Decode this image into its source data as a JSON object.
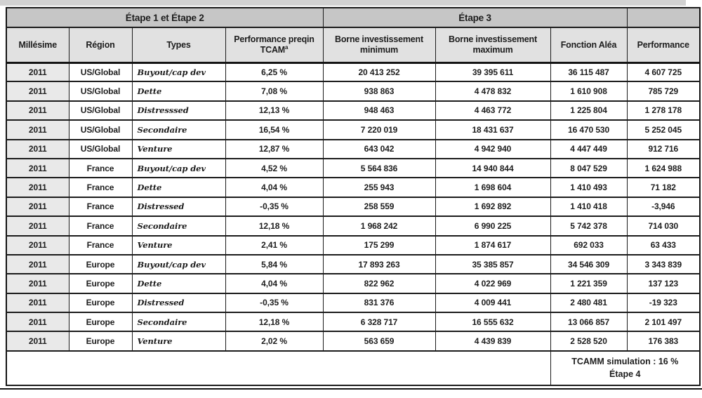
{
  "table": {
    "group_headers": [
      {
        "label": "Étape 1 et Étape 2",
        "colspan": 4
      },
      {
        "label": "Étape 3",
        "colspan": 3
      },
      {
        "label": "",
        "colspan": 1
      }
    ],
    "columns": [
      "Millésime",
      "Région",
      "Types",
      "Performance preqin TCAM",
      "Borne investissement minimum",
      "Borne investissement maximum",
      "Fonction Aléa",
      "Performance"
    ],
    "header_footnote_marker": "a",
    "rows": [
      [
        "2011",
        "US/Global",
        "Buyout/cap dev",
        "6,25 %",
        "20 413 252",
        "39 395 611",
        "36 115 487",
        "4 607 725"
      ],
      [
        "2011",
        "US/Global",
        "Dette",
        "7,08 %",
        "938 863",
        "4 478 832",
        "1 610 908",
        "785 729"
      ],
      [
        "2011",
        "US/Global",
        "Distresssed",
        "12,13 %",
        "948 463",
        "4 463 772",
        "1 225 804",
        "1 278 178"
      ],
      [
        "2011",
        "US/Global",
        "Secondaire",
        "16,54 %",
        "7 220 019",
        "18 431 637",
        "16 470 530",
        "5 252 045"
      ],
      [
        "2011",
        "US/Global",
        "Venture",
        "12,87 %",
        "643 042",
        "4 942 940",
        "4 447 449",
        "912 716"
      ],
      [
        "2011",
        "France",
        "Buyout/cap dev",
        "4,52 %",
        "5 564 836",
        "14 940 844",
        "8 047 529",
        "1 624 988"
      ],
      [
        "2011",
        "France",
        "Dette",
        "4,04 %",
        "255 943",
        "1 698 604",
        "1 410 493",
        "71 182"
      ],
      [
        "2011",
        "France",
        "Distressed",
        "-0,35 %",
        "258 559",
        "1 692 892",
        "1 410 418",
        "-3,946"
      ],
      [
        "2011",
        "France",
        "Secondaire",
        "12,18 %",
        "1 968 242",
        "6 990 225",
        "5 742 378",
        "714 030"
      ],
      [
        "2011",
        "France",
        "Venture",
        "2,41 %",
        "175 299",
        "1 874 617",
        "692 033",
        "63 433"
      ],
      [
        "2011",
        "Europe",
        "Buyout/cap dev",
        "5,84 %",
        "17 893 263",
        "35 385 857",
        "34 546 309",
        "3 343 839"
      ],
      [
        "2011",
        "Europe",
        "Dette",
        "4,04 %",
        "822 962",
        "4 022 969",
        "1 221 359",
        "137 123"
      ],
      [
        "2011",
        "Europe",
        "Distressed",
        "-0,35 %",
        "831 376",
        "4 009 441",
        "2 480 481",
        "-19 323"
      ],
      [
        "2011",
        "Europe",
        "Secondaire",
        "12,18 %",
        "6 328 717",
        "16 555 632",
        "13 066 857",
        "2 101 497"
      ],
      [
        "2011",
        "Europe",
        "Venture",
        "2,02 %",
        "563 659",
        "4 439 839",
        "2 528 520",
        "176 383"
      ]
    ],
    "footer": {
      "line1": "TCAMM simulation : 16 %",
      "line2": "Étape 4"
    }
  },
  "colors": {
    "group_header_bg": "#c6c6c6",
    "column_header_bg": "#e1e1e1",
    "first_column_bg": "#e9e9e9",
    "border": "#1b1b1b",
    "top_strip_bg": "#d2d2d2"
  }
}
